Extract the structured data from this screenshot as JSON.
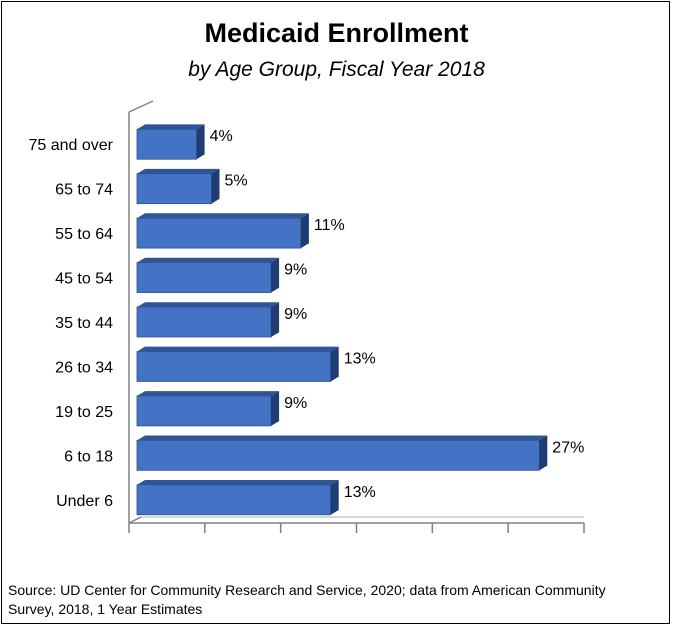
{
  "chart_data": {
    "type": "bar",
    "orientation": "horizontal",
    "title": "Medicaid Enrollment",
    "subtitle": "by Age Group, Fiscal Year 2018",
    "categories": [
      "75 and over",
      "65 to 74",
      "55 to 64",
      "45 to 54",
      "35 to 44",
      "26 to 34",
      "19 to 25",
      "6 to 18",
      "Under 6"
    ],
    "values": [
      4,
      5,
      11,
      9,
      9,
      13,
      9,
      27,
      13
    ],
    "data_labels": [
      "4%",
      "5%",
      "11%",
      "9%",
      "9%",
      "13%",
      "9%",
      "27%",
      "13%"
    ],
    "unit": "%",
    "xlim": [
      0,
      30
    ],
    "grid": false,
    "legend": "none",
    "bar_color": "#4472C4",
    "source": "Source: UD Center for Community Research and Service, 2020; data from American Community Survey, 2018, 1 Year Estimates"
  }
}
